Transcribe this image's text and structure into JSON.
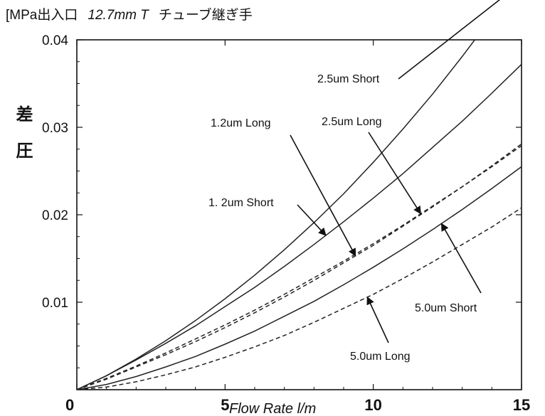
{
  "title": {
    "unit": "[MPa",
    "part": "出入口",
    "size": "12.7mm T",
    "product": "チューブ継ぎ手"
  },
  "chart_data": {
    "type": "line",
    "title": "[MPa出入口 12.7mm T チューブ継ぎ手",
    "xlabel": "Flow Rate  l/m",
    "ylabel": "差 圧",
    "xlim": [
      0,
      15
    ],
    "ylim": [
      0,
      0.04
    ],
    "x_ticks": [
      "0",
      "5",
      "10",
      "15"
    ],
    "y_ticks": [
      "0.01",
      "0.02",
      "0.03",
      "0.04"
    ],
    "grid": false,
    "x": [
      0,
      1,
      2,
      3,
      4,
      5,
      6,
      7,
      8,
      9,
      10,
      11,
      12,
      13,
      14,
      15
    ],
    "series": [
      {
        "name": "2.5um Short",
        "style": "solid",
        "values": [
          0,
          0.0016,
          0.0035,
          0.0056,
          0.0079,
          0.0104,
          0.0131,
          0.016,
          0.0191,
          0.0224,
          0.026,
          0.0298,
          0.0338,
          0.0381,
          0.0426,
          0.0474
        ]
      },
      {
        "name": "1.2um Short",
        "style": "solid",
        "values": [
          0,
          0.0016,
          0.0034,
          0.0053,
          0.0073,
          0.0095,
          0.0117,
          0.0141,
          0.0166,
          0.0192,
          0.0219,
          0.0247,
          0.0277,
          0.0307,
          0.0339,
          0.0372
        ]
      },
      {
        "name": "2.5um Long",
        "style": "dashed",
        "values": [
          0,
          0.0013,
          0.0027,
          0.0042,
          0.0058,
          0.0074,
          0.0091,
          0.0109,
          0.0128,
          0.0147,
          0.0167,
          0.0188,
          0.021,
          0.0232,
          0.0255,
          0.0279
        ]
      },
      {
        "name": "1.2um Long",
        "style": "dashed",
        "values": [
          0,
          0.0012,
          0.0026,
          0.004,
          0.0055,
          0.0071,
          0.0088,
          0.0106,
          0.0125,
          0.0145,
          0.0165,
          0.0187,
          0.0209,
          0.0232,
          0.0256,
          0.0281
        ]
      },
      {
        "name": "5.0um Short",
        "style": "solid",
        "values": [
          0,
          0.0006,
          0.0015,
          0.0026,
          0.0038,
          0.0052,
          0.0067,
          0.0084,
          0.0101,
          0.012,
          0.014,
          0.0161,
          0.0183,
          0.0206,
          0.023,
          0.0255
        ]
      },
      {
        "name": "5.0um Long",
        "style": "dashed",
        "values": [
          0,
          0.0003,
          0.0009,
          0.0017,
          0.0026,
          0.0037,
          0.0049,
          0.0062,
          0.0077,
          0.0093,
          0.0109,
          0.0127,
          0.0146,
          0.0166,
          0.0186,
          0.0208
        ]
      }
    ],
    "annotations": [
      {
        "text": "2.5um Short",
        "series": "2.5um Short",
        "point_x": 14.6
      },
      {
        "text": "1.2um Long",
        "series": "1.2um Long",
        "point_x": 9.4
      },
      {
        "text": "2.5um Long",
        "series": "2.5um Long",
        "point_x": 11.6
      },
      {
        "text": "1. 2um Short",
        "series": "1.2um Short",
        "point_x": 8.4
      },
      {
        "text": "5.0um Short",
        "series": "5.0um Short",
        "point_x": 12.3
      },
      {
        "text": "5.0um Long",
        "series": "5.0um Long",
        "point_x": 9.8
      }
    ]
  }
}
